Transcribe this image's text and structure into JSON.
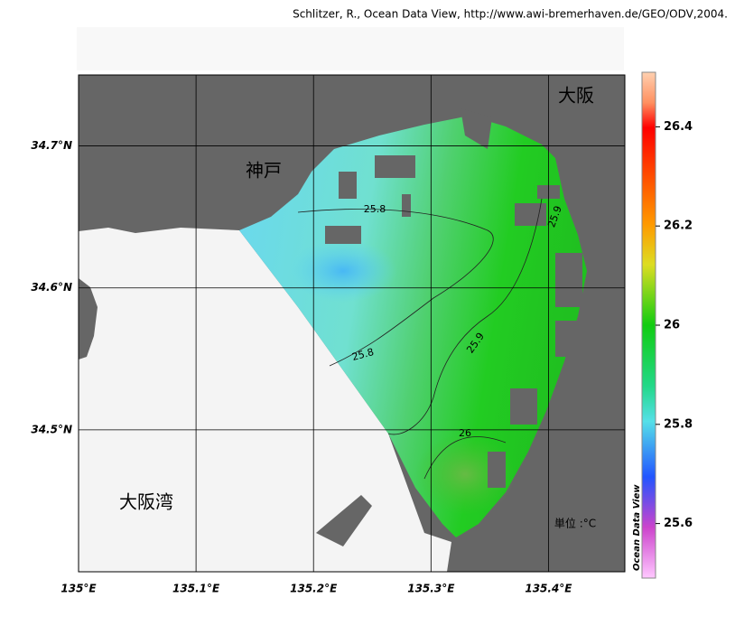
{
  "credit": "Schlitzer, R., Ocean Data View, http://www.awi-bremerhaven.de/GEO/ODV,2004.",
  "map": {
    "xlim": [
      135,
      135.465
    ],
    "ylim": [
      34.4,
      34.75
    ],
    "xticks": [
      {
        "value": 135,
        "label": "135°E"
      },
      {
        "value": 135.1,
        "label": "135.1°E"
      },
      {
        "value": 135.2,
        "label": "135.2°E"
      },
      {
        "value": 135.3,
        "label": "135.3°E"
      },
      {
        "value": 135.4,
        "label": "135.4°E"
      }
    ],
    "yticks": [
      {
        "value": 34.5,
        "label": "34.5°N"
      },
      {
        "value": 34.6,
        "label": "34.6°N"
      },
      {
        "value": 34.7,
        "label": "34.7°N"
      }
    ],
    "grid": true,
    "places": [
      "神戸",
      "大阪",
      "大阪湾"
    ],
    "contour_labels": [
      25.8,
      25.9,
      25.8,
      25.9,
      26
    ],
    "unit": "単位 :°C"
  },
  "colorbar": {
    "title": "Ocean Data View",
    "lim": [
      25.49,
      26.51
    ],
    "ticks": [
      25.6,
      25.8,
      26,
      26.2,
      26.4
    ]
  }
}
